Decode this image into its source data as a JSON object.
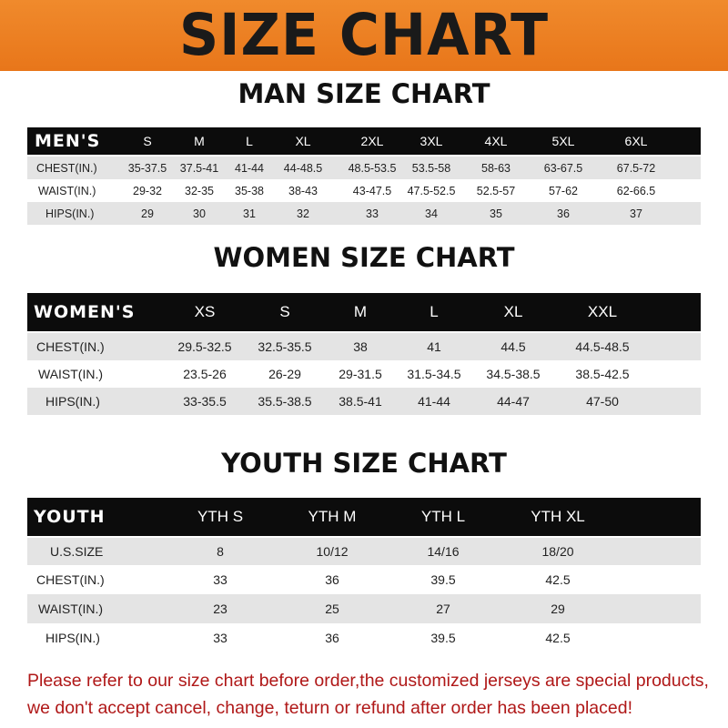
{
  "banner_title": "SIZE CHART",
  "men": {
    "title": "MAN SIZE CHART",
    "header": "MEN'S",
    "sizes": [
      "S",
      "M",
      "L",
      "XL",
      "2XL",
      "3XL",
      "4XL",
      "5XL",
      "6XL"
    ],
    "rows": [
      {
        "label": "CHEST(IN.)",
        "values": [
          "35-37.5",
          "37.5-41",
          "41-44",
          "44-48.5",
          "48.5-53.5",
          "53.5-58",
          "58-63",
          "63-67.5",
          "67.5-72"
        ]
      },
      {
        "label": "WAIST(IN.)",
        "values": [
          "29-32",
          "32-35",
          "35-38",
          "38-43",
          "43-47.5",
          "47.5-52.5",
          "52.5-57",
          "57-62",
          "62-66.5"
        ]
      },
      {
        "label": "HIPS(IN.)",
        "values": [
          "29",
          "30",
          "31",
          "32",
          "33",
          "34",
          "35",
          "36",
          "37"
        ]
      }
    ]
  },
  "women": {
    "title": "WOMEN SIZE CHART",
    "header": "WOMEN'S",
    "sizes": [
      "XS",
      "S",
      "M",
      "L",
      "XL",
      "XXL"
    ],
    "rows": [
      {
        "label": "CHEST(IN.)",
        "values": [
          "29.5-32.5",
          "32.5-35.5",
          "38",
          "41",
          "44.5",
          "44.5-48.5"
        ]
      },
      {
        "label": "WAIST(IN.)",
        "values": [
          "23.5-26",
          "26-29",
          "29-31.5",
          "31.5-34.5",
          "34.5-38.5",
          "38.5-42.5"
        ]
      },
      {
        "label": "HIPS(IN.)",
        "values": [
          "33-35.5",
          "35.5-38.5",
          "38.5-41",
          "41-44",
          "44-47",
          "47-50"
        ]
      }
    ]
  },
  "youth": {
    "title": "YOUTH SIZE CHART",
    "header": "YOUTH",
    "sizes": [
      "YTH S",
      "YTH M",
      "YTH L",
      "YTH XL"
    ],
    "rows": [
      {
        "label": "U.S.SIZE",
        "values": [
          "8",
          "10/12",
          "14/16",
          "18/20"
        ]
      },
      {
        "label": "CHEST(IN.)",
        "values": [
          "33",
          "36",
          "39.5",
          "42.5"
        ]
      },
      {
        "label": "WAIST(IN.)",
        "values": [
          "23",
          "25",
          "27",
          "29"
        ]
      },
      {
        "label": "HIPS(IN.)",
        "values": [
          "33",
          "36",
          "39.5",
          "42.5"
        ]
      }
    ]
  },
  "notice": [
    "Please refer to our size chart before order,the customized jerseys are special products,",
    "we don't accept cancel, change, teturn or refund after order has been placed!"
  ],
  "colors": {
    "banner": "#ee8224",
    "header_row": "#0c0c0c",
    "shaded_row": "#e4e4e4",
    "notice_text": "#b01818"
  }
}
